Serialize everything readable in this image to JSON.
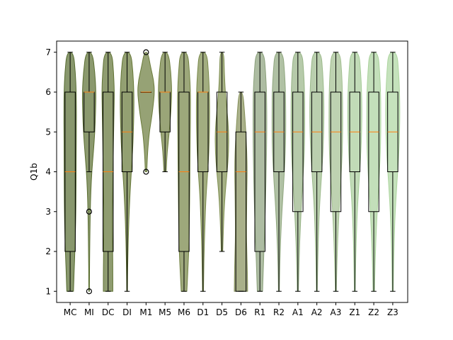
{
  "chart_data": {
    "type": "violin",
    "ylabel": "Q1b",
    "xlabel": "",
    "title": "",
    "ylim": [
      0.72,
      7.28
    ],
    "yticks": [
      1,
      2,
      3,
      4,
      5,
      6,
      7
    ],
    "grid": false,
    "categories": [
      "MC",
      "MI",
      "DC",
      "DI",
      "M1",
      "M5",
      "M6",
      "D1",
      "D5",
      "D6",
      "R1",
      "R2",
      "A1",
      "A2",
      "A3",
      "Z1",
      "Z2",
      "Z3"
    ],
    "colors": [
      "#556b2f",
      "#5a6e30",
      "#5f7233",
      "#657736",
      "#6a7b3a",
      "#6f7f3f",
      "#738343",
      "#7a8a4a",
      "#7f8f50",
      "#848f58",
      "#8aa07a",
      "#8fa67e",
      "#97b486",
      "#9cba8b",
      "#a2bf90",
      "#a6cc99",
      "#aad19c",
      "#add59f"
    ],
    "boxes": [
      {
        "whislo": 1,
        "q1": 2,
        "med": 4,
        "q3": 6,
        "whishi": 7,
        "fliers": []
      },
      {
        "whislo": 4,
        "q1": 5,
        "med": 6,
        "q3": 6,
        "whishi": 7,
        "fliers": [
          3,
          1
        ]
      },
      {
        "whislo": 1,
        "q1": 2,
        "med": 4,
        "q3": 6,
        "whishi": 7,
        "fliers": []
      },
      {
        "whislo": 1,
        "q1": 4,
        "med": 5,
        "q3": 6,
        "whishi": 7,
        "fliers": []
      },
      {
        "whislo": 6,
        "q1": 6,
        "med": 6,
        "q3": 6,
        "whishi": 6,
        "fliers": [
          7,
          4
        ]
      },
      {
        "whislo": 4,
        "q1": 5,
        "med": 6,
        "q3": 6,
        "whishi": 7,
        "fliers": []
      },
      {
        "whislo": 1,
        "q1": 2,
        "med": 4,
        "q3": 6,
        "whishi": 7,
        "fliers": []
      },
      {
        "whislo": 1,
        "q1": 4,
        "med": 6,
        "q3": 6,
        "whishi": 7,
        "fliers": []
      },
      {
        "whislo": 2,
        "q1": 4,
        "med": 5,
        "q3": 6,
        "whishi": 7,
        "fliers": []
      },
      {
        "whislo": 1,
        "q1": 1,
        "med": 4,
        "q3": 5,
        "whishi": 6,
        "fliers": []
      },
      {
        "whislo": 1,
        "q1": 2,
        "med": 5,
        "q3": 6,
        "whishi": 7,
        "fliers": []
      },
      {
        "whislo": 1,
        "q1": 4,
        "med": 5,
        "q3": 6,
        "whishi": 7,
        "fliers": []
      },
      {
        "whislo": 1,
        "q1": 3,
        "med": 5,
        "q3": 6,
        "whishi": 7,
        "fliers": []
      },
      {
        "whislo": 1,
        "q1": 4,
        "med": 5,
        "q3": 6,
        "whishi": 7,
        "fliers": []
      },
      {
        "whislo": 1,
        "q1": 3,
        "med": 5,
        "q3": 6,
        "whishi": 7,
        "fliers": []
      },
      {
        "whislo": 1,
        "q1": 4,
        "med": 5,
        "q3": 6,
        "whishi": 7,
        "fliers": []
      },
      {
        "whislo": 1,
        "q1": 3,
        "med": 5,
        "q3": 6,
        "whishi": 7,
        "fliers": []
      },
      {
        "whislo": 1,
        "q1": 4,
        "med": 5,
        "q3": 6,
        "whishi": 7,
        "fliers": []
      }
    ],
    "violins": [
      {
        "y": [
          1,
          1.5,
          2,
          2.5,
          3,
          3.5,
          4,
          4.5,
          5,
          5.5,
          6,
          6.5,
          7
        ],
        "w": [
          0.35,
          0.42,
          0.5,
          0.56,
          0.6,
          0.62,
          0.63,
          0.64,
          0.65,
          0.66,
          0.64,
          0.55,
          0.35
        ]
      },
      {
        "y": [
          1,
          1.5,
          2,
          2.5,
          3,
          3.5,
          4,
          4.5,
          5,
          5.5,
          6,
          6.5,
          7
        ],
        "w": [
          0.03,
          0.04,
          0.06,
          0.09,
          0.12,
          0.18,
          0.28,
          0.45,
          0.6,
          0.68,
          0.72,
          0.6,
          0.35
        ]
      },
      {
        "y": [
          1,
          1.5,
          2,
          2.5,
          3,
          3.5,
          4,
          4.5,
          5,
          5.5,
          6,
          6.5,
          7
        ],
        "w": [
          0.5,
          0.5,
          0.48,
          0.45,
          0.45,
          0.48,
          0.52,
          0.55,
          0.58,
          0.62,
          0.66,
          0.58,
          0.4
        ]
      },
      {
        "y": [
          1,
          1.5,
          2,
          2.5,
          3,
          3.5,
          4,
          4.5,
          5,
          5.5,
          6,
          6.5,
          7
        ],
        "w": [
          0.04,
          0.06,
          0.1,
          0.15,
          0.22,
          0.32,
          0.45,
          0.58,
          0.66,
          0.72,
          0.72,
          0.62,
          0.4
        ]
      },
      {
        "y": [
          4,
          4.3,
          4.6,
          5,
          5.3,
          5.6,
          6,
          6.3,
          6.6,
          7
        ],
        "w": [
          0.08,
          0.12,
          0.2,
          0.35,
          0.55,
          0.72,
          0.9,
          0.8,
          0.5,
          0.2
        ]
      },
      {
        "y": [
          4,
          4.5,
          5,
          5.5,
          6,
          6.5,
          7
        ],
        "w": [
          0.12,
          0.22,
          0.45,
          0.62,
          0.72,
          0.62,
          0.35
        ]
      },
      {
        "y": [
          1,
          1.5,
          2,
          2.5,
          3,
          3.5,
          4,
          4.5,
          5,
          5.5,
          6,
          6.5,
          7
        ],
        "w": [
          0.3,
          0.4,
          0.5,
          0.55,
          0.58,
          0.6,
          0.62,
          0.64,
          0.66,
          0.68,
          0.68,
          0.58,
          0.4
        ]
      },
      {
        "y": [
          1,
          1.5,
          2,
          2.5,
          3,
          3.5,
          4,
          4.5,
          5,
          5.5,
          6,
          6.5,
          7
        ],
        "w": [
          0.05,
          0.08,
          0.12,
          0.18,
          0.25,
          0.35,
          0.5,
          0.62,
          0.68,
          0.7,
          0.68,
          0.58,
          0.4
        ]
      },
      {
        "y": [
          2,
          2.5,
          3,
          3.5,
          4,
          4.5,
          5,
          5.5,
          6,
          6.5,
          7
        ],
        "w": [
          0.08,
          0.14,
          0.22,
          0.35,
          0.55,
          0.7,
          0.72,
          0.55,
          0.35,
          0.25,
          0.2
        ]
      },
      {
        "y": [
          1,
          1.5,
          2,
          2.5,
          3,
          3.5,
          4,
          4.5,
          5,
          5.5,
          6
        ],
        "w": [
          0.7,
          0.68,
          0.62,
          0.58,
          0.6,
          0.62,
          0.66,
          0.62,
          0.52,
          0.38,
          0.2
        ]
      },
      {
        "y": [
          1,
          1.5,
          2,
          2.5,
          3,
          3.5,
          4,
          4.5,
          5,
          5.5,
          6,
          6.5,
          7
        ],
        "w": [
          0.28,
          0.35,
          0.42,
          0.5,
          0.56,
          0.62,
          0.66,
          0.7,
          0.72,
          0.72,
          0.7,
          0.6,
          0.42
        ]
      },
      {
        "y": [
          1,
          1.5,
          2,
          2.5,
          3,
          3.5,
          4,
          4.5,
          5,
          5.5,
          6,
          6.5,
          7
        ],
        "w": [
          0.05,
          0.08,
          0.14,
          0.22,
          0.32,
          0.45,
          0.58,
          0.68,
          0.72,
          0.72,
          0.7,
          0.6,
          0.42
        ]
      },
      {
        "y": [
          1,
          1.5,
          2,
          2.5,
          3,
          3.5,
          4,
          4.5,
          5,
          5.5,
          6,
          6.5,
          7
        ],
        "w": [
          0.06,
          0.1,
          0.16,
          0.24,
          0.34,
          0.45,
          0.58,
          0.68,
          0.72,
          0.72,
          0.7,
          0.62,
          0.45
        ]
      },
      {
        "y": [
          1,
          1.5,
          2,
          2.5,
          3,
          3.5,
          4,
          4.5,
          5,
          5.5,
          6,
          6.5,
          7
        ],
        "w": [
          0.05,
          0.08,
          0.12,
          0.18,
          0.26,
          0.38,
          0.52,
          0.65,
          0.72,
          0.75,
          0.72,
          0.62,
          0.45
        ]
      },
      {
        "y": [
          1,
          1.5,
          2,
          2.5,
          3,
          3.5,
          4,
          4.5,
          5,
          5.5,
          6,
          6.5,
          7
        ],
        "w": [
          0.06,
          0.1,
          0.16,
          0.24,
          0.34,
          0.45,
          0.58,
          0.68,
          0.72,
          0.72,
          0.7,
          0.62,
          0.45
        ]
      },
      {
        "y": [
          1,
          1.5,
          2,
          2.5,
          3,
          3.5,
          4,
          4.5,
          5,
          5.5,
          6,
          6.5,
          7
        ],
        "w": [
          0.05,
          0.08,
          0.12,
          0.18,
          0.26,
          0.38,
          0.52,
          0.65,
          0.72,
          0.75,
          0.72,
          0.62,
          0.45
        ]
      },
      {
        "y": [
          1,
          1.5,
          2,
          2.5,
          3,
          3.5,
          4,
          4.5,
          5,
          5.5,
          6,
          6.5,
          7
        ],
        "w": [
          0.08,
          0.12,
          0.18,
          0.26,
          0.36,
          0.48,
          0.6,
          0.7,
          0.74,
          0.74,
          0.72,
          0.62,
          0.45
        ]
      },
      {
        "y": [
          1,
          1.5,
          2,
          2.5,
          3,
          3.5,
          4,
          4.5,
          5,
          5.5,
          6,
          6.5,
          7
        ],
        "w": [
          0.05,
          0.08,
          0.12,
          0.18,
          0.26,
          0.38,
          0.52,
          0.65,
          0.72,
          0.75,
          0.72,
          0.62,
          0.45
        ]
      }
    ]
  }
}
